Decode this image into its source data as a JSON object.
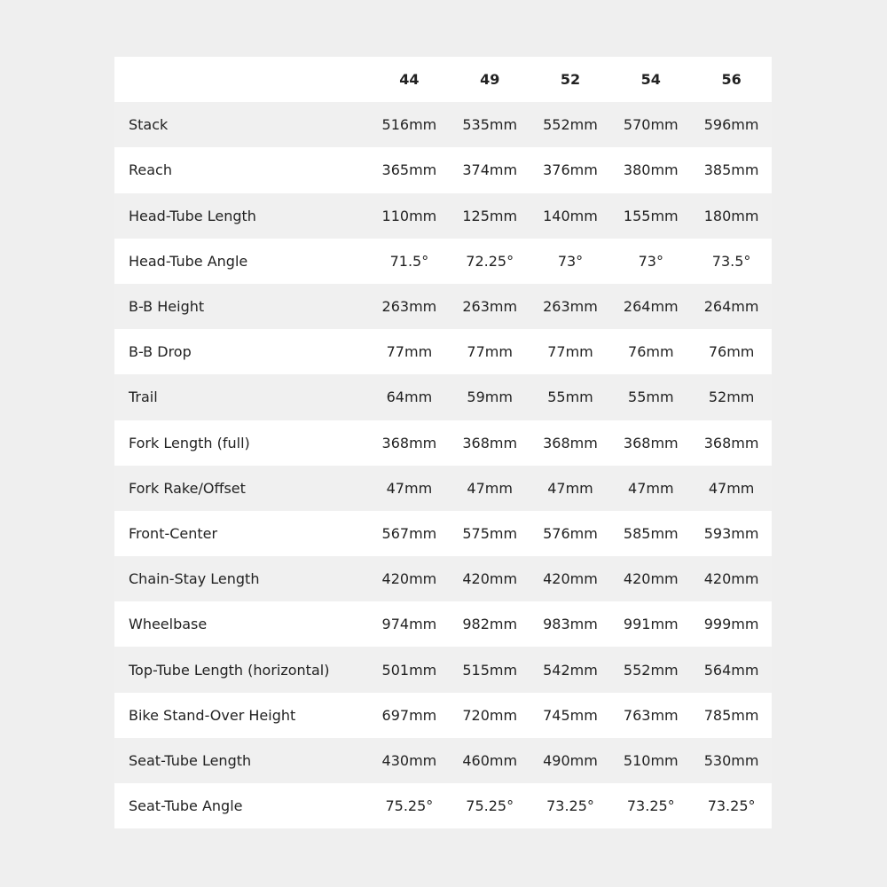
{
  "table": {
    "columns": [
      "44",
      "49",
      "52",
      "54",
      "56"
    ],
    "rows": [
      {
        "label": "Stack",
        "values": [
          "516mm",
          "535mm",
          "552mm",
          "570mm",
          "596mm"
        ]
      },
      {
        "label": "Reach",
        "values": [
          "365mm",
          "374mm",
          "376mm",
          "380mm",
          "385mm"
        ]
      },
      {
        "label": "Head-Tube Length",
        "values": [
          "110mm",
          "125mm",
          "140mm",
          "155mm",
          "180mm"
        ]
      },
      {
        "label": "Head-Tube Angle",
        "values": [
          "71.5°",
          "72.25°",
          "73°",
          "73°",
          "73.5°"
        ]
      },
      {
        "label": "B-B Height",
        "values": [
          "263mm",
          "263mm",
          "263mm",
          "264mm",
          "264mm"
        ]
      },
      {
        "label": "B-B Drop",
        "values": [
          "77mm",
          "77mm",
          "77mm",
          "76mm",
          "76mm"
        ]
      },
      {
        "label": "Trail",
        "values": [
          "64mm",
          "59mm",
          "55mm",
          "55mm",
          "52mm"
        ]
      },
      {
        "label": "Fork Length (full)",
        "values": [
          "368mm",
          "368mm",
          "368mm",
          "368mm",
          "368mm"
        ]
      },
      {
        "label": "Fork Rake/Offset",
        "values": [
          "47mm",
          "47mm",
          "47mm",
          "47mm",
          "47mm"
        ]
      },
      {
        "label": "Front-Center",
        "values": [
          "567mm",
          "575mm",
          "576mm",
          "585mm",
          "593mm"
        ]
      },
      {
        "label": "Chain-Stay Length",
        "values": [
          "420mm",
          "420mm",
          "420mm",
          "420mm",
          "420mm"
        ]
      },
      {
        "label": "Wheelbase",
        "values": [
          "974mm",
          "982mm",
          "983mm",
          "991mm",
          "999mm"
        ]
      },
      {
        "label": "Top-Tube Length (horizontal)",
        "values": [
          "501mm",
          "515mm",
          "542mm",
          "552mm",
          "564mm"
        ]
      },
      {
        "label": "Bike Stand-Over Height",
        "values": [
          "697mm",
          "720mm",
          "745mm",
          "763mm",
          "785mm"
        ]
      },
      {
        "label": "Seat-Tube Length",
        "values": [
          "430mm",
          "460mm",
          "490mm",
          "510mm",
          "530mm"
        ]
      },
      {
        "label": "Seat-Tube Angle",
        "values": [
          "75.25°",
          "75.25°",
          "73.25°",
          "73.25°",
          "73.25°"
        ]
      }
    ]
  }
}
